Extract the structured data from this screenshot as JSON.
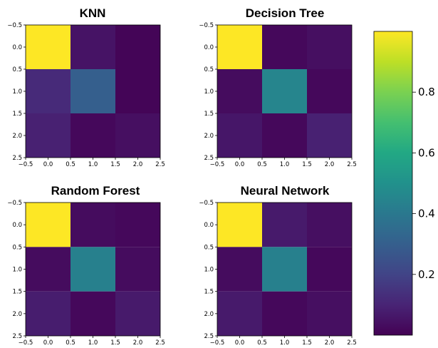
{
  "chart_data": [
    {
      "type": "heatmap",
      "title": "KNN",
      "x_ticks": [
        "−0.5",
        "0.0",
        "0.5",
        "1.0",
        "1.5",
        "2.0",
        "2.5"
      ],
      "y_ticks": [
        "−0.5",
        "0.0",
        "0.5",
        "1.0",
        "1.5",
        "2.0",
        "2.5"
      ],
      "xlim": [
        -0.5,
        2.5
      ],
      "ylim": [
        2.5,
        -0.5
      ],
      "values": [
        [
          1.0,
          0.05,
          0.01
        ],
        [
          0.12,
          0.3,
          0.01
        ],
        [
          0.09,
          0.02,
          0.04
        ]
      ]
    },
    {
      "type": "heatmap",
      "title": "Decision Tree",
      "x_ticks": [
        "−0.5",
        "0.0",
        "0.5",
        "1.0",
        "1.5",
        "2.0",
        "2.5"
      ],
      "y_ticks": [
        "−0.5",
        "0.0",
        "0.5",
        "1.0",
        "1.5",
        "2.0",
        "2.5"
      ],
      "xlim": [
        -0.5,
        2.5
      ],
      "ylim": [
        2.5,
        -0.5
      ],
      "values": [
        [
          1.0,
          0.02,
          0.04
        ],
        [
          0.03,
          0.45,
          0.02
        ],
        [
          0.06,
          0.02,
          0.09
        ]
      ]
    },
    {
      "type": "heatmap",
      "title": "Random Forest",
      "x_ticks": [
        "−0.5",
        "0.0",
        "0.5",
        "1.0",
        "1.5",
        "2.0",
        "2.5"
      ],
      "y_ticks": [
        "−0.5",
        "0.0",
        "0.5",
        "1.0",
        "1.5",
        "2.0",
        "2.5"
      ],
      "xlim": [
        -0.5,
        2.5
      ],
      "ylim": [
        2.5,
        -0.5
      ],
      "values": [
        [
          1.0,
          0.03,
          0.02
        ],
        [
          0.03,
          0.43,
          0.03
        ],
        [
          0.08,
          0.02,
          0.07
        ]
      ]
    },
    {
      "type": "heatmap",
      "title": "Neural Network",
      "x_ticks": [
        "−0.5",
        "0.0",
        "0.5",
        "1.0",
        "1.5",
        "2.0",
        "2.5"
      ],
      "y_ticks": [
        "−0.5",
        "0.0",
        "0.5",
        "1.0",
        "1.5",
        "2.0",
        "2.5"
      ],
      "xlim": [
        -0.5,
        2.5
      ],
      "ylim": [
        2.5,
        -0.5
      ],
      "values": [
        [
          1.0,
          0.07,
          0.04
        ],
        [
          0.03,
          0.43,
          0.02
        ],
        [
          0.07,
          0.02,
          0.04
        ]
      ]
    }
  ],
  "colorbar": {
    "colormap": "viridis",
    "range": [
      0.0,
      1.0
    ],
    "tick_values": [
      0.2,
      0.4,
      0.6,
      0.8
    ],
    "tick_labels": [
      "0.2",
      "0.4",
      "0.6",
      "0.8"
    ]
  }
}
